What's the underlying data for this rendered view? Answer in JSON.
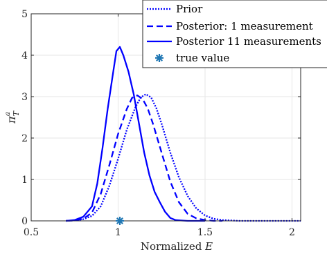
{
  "chart_data": {
    "type": "line",
    "xlabel": "Normalized ",
    "xlabel_var": "E",
    "ylabel_sym": "π",
    "ylabel_sub": "T",
    "ylabel_sup": "a",
    "xlim": [
      0.5,
      2.05
    ],
    "ylim": [
      0,
      5
    ],
    "xticks": [
      0.5,
      1,
      1.5,
      2
    ],
    "xtick_labels": [
      "0.5",
      "1",
      "1.5",
      "2"
    ],
    "yticks": [
      0,
      1,
      2,
      3,
      4,
      5
    ],
    "ytick_labels": [
      "0",
      "1",
      "2",
      "3",
      "4",
      "5"
    ],
    "grid": true,
    "legend_position": "top-right",
    "series": [
      {
        "name": "Prior",
        "style": "dotted",
        "color": "#0000ff",
        "x": [
          0.7,
          0.75,
          0.8,
          0.85,
          0.9,
          0.95,
          1.0,
          1.05,
          1.1,
          1.13,
          1.16,
          1.19,
          1.22,
          1.25,
          1.3,
          1.35,
          1.4,
          1.45,
          1.5,
          1.55,
          1.6,
          1.65,
          1.7,
          1.8,
          1.9,
          2.0,
          2.05
        ],
        "y": [
          0.0,
          0.01,
          0.04,
          0.12,
          0.35,
          0.85,
          1.5,
          2.2,
          2.75,
          2.98,
          3.06,
          2.98,
          2.72,
          2.35,
          1.65,
          1.05,
          0.6,
          0.3,
          0.13,
          0.05,
          0.02,
          0.01,
          0.0,
          0.0,
          0.0,
          0.0,
          0.0
        ]
      },
      {
        "name": "Posterior: 1 measurement",
        "style": "dashed",
        "color": "#0000ff",
        "x": [
          0.7,
          0.75,
          0.8,
          0.85,
          0.9,
          0.95,
          1.0,
          1.05,
          1.08,
          1.11,
          1.14,
          1.17,
          1.2,
          1.25,
          1.3,
          1.35,
          1.4,
          1.45,
          1.5,
          1.55,
          1.6
        ],
        "y": [
          0.0,
          0.01,
          0.05,
          0.2,
          0.65,
          1.35,
          2.1,
          2.7,
          2.97,
          3.03,
          2.95,
          2.72,
          2.35,
          1.65,
          0.95,
          0.45,
          0.17,
          0.06,
          0.02,
          0.0,
          0.0
        ]
      },
      {
        "name": "Posterior 11 measurements",
        "style": "solid",
        "color": "#0000ff",
        "x": [
          0.7,
          0.75,
          0.8,
          0.85,
          0.88,
          0.91,
          0.94,
          0.97,
          0.99,
          1.01,
          1.03,
          1.06,
          1.09,
          1.12,
          1.15,
          1.18,
          1.21,
          1.24,
          1.27,
          1.3,
          1.33,
          1.36,
          1.4,
          1.45,
          1.5
        ],
        "y": [
          0.0,
          0.02,
          0.1,
          0.35,
          0.9,
          1.75,
          2.7,
          3.55,
          4.1,
          4.2,
          4.0,
          3.6,
          3.05,
          2.35,
          1.65,
          1.1,
          0.7,
          0.45,
          0.22,
          0.07,
          0.02,
          0.01,
          0.0,
          0.0,
          0.0
        ]
      }
    ],
    "markers": [
      {
        "name": "true value",
        "x": 1.01,
        "y": 0.0,
        "symbol": "asterisk",
        "color": "#1f77b4"
      }
    ]
  }
}
